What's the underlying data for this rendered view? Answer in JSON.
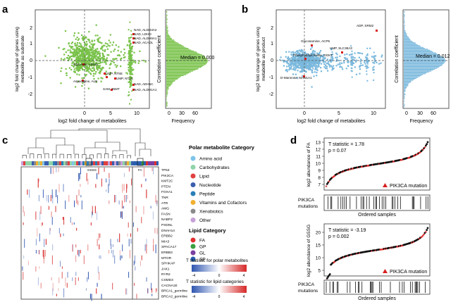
{
  "panels": {
    "a": {
      "letter": "a",
      "xlabel": "log2 fold change of metabolites",
      "ylabel_line1": "log2 fold change of genes using",
      "ylabel_line2": "metabolite as substrate",
      "xticks": [
        "0",
        "5",
        "10"
      ],
      "yticks": [
        "2",
        "1",
        "0",
        "-1",
        "-2"
      ],
      "annotations": [
        "NAD, ALDH3A2",
        "NAD, LDHD",
        "NAD, ALDH9A1",
        "NAD, ACADL",
        "Glycerate, LDHD",
        "UMP, NT5E",
        "UMP, NT5C",
        "Asparagine, ALB",
        "SAM, INMT",
        "NAD, ADH1C",
        "NAD, ALDH1A1"
      ],
      "hist": {
        "ylabel": "Correlation coefficient",
        "xlabel": "Frequency",
        "xticks": [
          "0",
          "30",
          "60"
        ],
        "median": "Median = 0.000"
      }
    },
    "b": {
      "letter": "b",
      "xlabel": "log2 fold change of metabolites",
      "ylabel_line1": "log2 fold change of genes using",
      "ylabel_line2": "metabolite as product",
      "xticks": [
        "0",
        "5",
        "10"
      ],
      "yticks": [
        "2",
        "1",
        "0",
        "-1",
        "-2"
      ],
      "annotations": [
        "ADP, SRM2",
        "Glucosamine, ACP5",
        "UMP, SLC38A3",
        "Phosphatidylcholine, DGKT",
        "D-Mannose, MAN1A1"
      ],
      "hist": {
        "ylabel": "Correlation coefficient",
        "xlabel": "Frequency",
        "xticks": [
          "0",
          "30",
          "60"
        ],
        "median": "Median = 0.012"
      }
    },
    "c": {
      "letter": "c",
      "genes": [
        "TP53",
        "PIK3CA",
        "KMT2C",
        "PTEN",
        "FOXA1",
        "TNR",
        "ATR",
        "AMG",
        "FASN",
        "NABP2",
        "PXDNL",
        "DNAH14",
        "ERBB2",
        "MIA3",
        "SPACA17",
        "ERBB3",
        "MTOR",
        "SPHKAP",
        "JAK1",
        "RYR2",
        "CSMD3",
        "CACNA1E",
        "BRCA1_germline",
        "BRCA2_germline"
      ],
      "heat_labels": [
        "GSSG",
        "FA"
      ],
      "polar_title": "Polar metabolite Category",
      "polar_items": [
        {
          "label": "Amino acid",
          "color": "#7fc4e8"
        },
        {
          "label": "Carbohydrates",
          "color": "#8fd3a8"
        },
        {
          "label": "Lipid",
          "color": "#e04040"
        },
        {
          "label": "Nucleotide",
          "color": "#3b5fae"
        },
        {
          "label": "Peptide",
          "color": "#2a7fb8"
        },
        {
          "label": "Vitamins and Cofactors",
          "color": "#f0b030"
        },
        {
          "label": "Xenobiotics",
          "color": "#8a8a8a"
        },
        {
          "label": "Other",
          "color": "#c6a0d8"
        }
      ],
      "lipid_title": "Lipid Category",
      "lipid_items": [
        {
          "label": "FA",
          "color": "#e03030"
        },
        {
          "label": "GP",
          "color": "#3aa040"
        },
        {
          "label": "GL",
          "color": "#7a3fa0"
        },
        {
          "label": "SP",
          "color": "#2a60b0"
        }
      ],
      "polar_bar_title": "T statistic for polar metabolites",
      "polar_bar_ticks": [
        "-4",
        "0",
        "4"
      ],
      "lipid_bar_title": "T statistic for lipid categories",
      "lipid_bar_ticks": [
        "-4",
        "0",
        "4"
      ]
    },
    "d": {
      "letter": "d",
      "top": {
        "ylabel": "log2 abundance of FA",
        "yticks": [
          "13",
          "12",
          "11",
          "10",
          "9",
          "8",
          "7"
        ],
        "stat_line1": "T statistic = 1.78",
        "stat_line2": "p = 0.07",
        "legend": "PIK3CA mutation",
        "mut_label_line1": "PIK3CA",
        "mut_label_line2": "mutations",
        "xlabel": "Ordered samples"
      },
      "bottom": {
        "ylabel": "log2 abundance of GSSG",
        "yticks": [
          "20",
          "15",
          "10",
          "5"
        ],
        "stat_line1": "T statistic = -3.19",
        "stat_line2": "p = 0.002",
        "legend": "PIK3CA mutation",
        "mut_label_line1": "PIK3CA",
        "mut_label_line2": "mutations",
        "xlabel": "Ordered samples"
      }
    }
  },
  "colors": {
    "green": "#79c24a",
    "blue": "#7ab8dd",
    "red": "#d82020",
    "heat_red": "#d62828",
    "heat_blue": "#2e55b0"
  }
}
